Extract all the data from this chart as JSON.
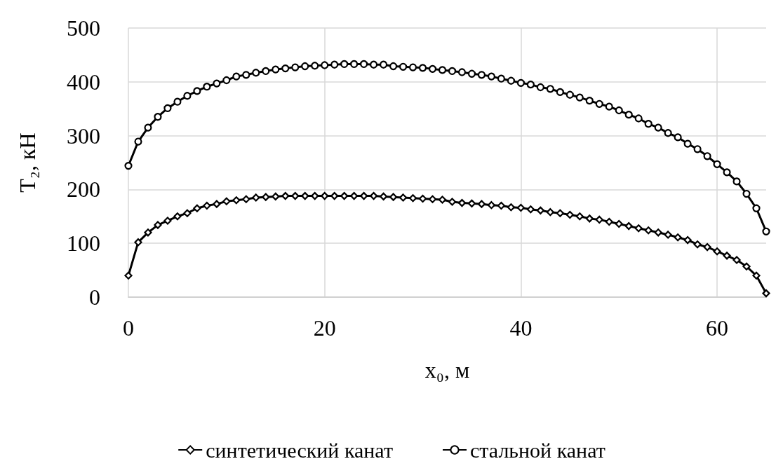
{
  "chart_data": {
    "type": "line",
    "xlabel": "x₀, м",
    "ylabel": "T₂, кН",
    "x": [
      0,
      1,
      2,
      3,
      4,
      5,
      6,
      7,
      8,
      9,
      10,
      11,
      12,
      13,
      14,
      15,
      16,
      17,
      18,
      19,
      20,
      21,
      22,
      23,
      24,
      25,
      26,
      27,
      28,
      29,
      30,
      31,
      32,
      33,
      34,
      35,
      36,
      37,
      38,
      39,
      40,
      41,
      42,
      43,
      44,
      45,
      46,
      47,
      48,
      49,
      50,
      51,
      52,
      53,
      54,
      55,
      56,
      57,
      58,
      59,
      60,
      61,
      62,
      63,
      64,
      65
    ],
    "series": [
      {
        "name": "синтетический канат",
        "color": "#000000",
        "marker": "diamond",
        "values": [
          40,
          102,
          120,
          134,
          142,
          150,
          156,
          165,
          170,
          173,
          178,
          180,
          182,
          185,
          186,
          187,
          188,
          188,
          188,
          188,
          188,
          188,
          188,
          188,
          188,
          188,
          187,
          186,
          185,
          184,
          183,
          182,
          181,
          177,
          175,
          174,
          173,
          171,
          170,
          167,
          166,
          163,
          161,
          158,
          156,
          153,
          150,
          146,
          144,
          140,
          136,
          132,
          128,
          124,
          120,
          116,
          111,
          106,
          98,
          93,
          85,
          77,
          69,
          57,
          40,
          7
        ]
      },
      {
        "name": "стальной канат",
        "color": "#000000",
        "marker": "circle",
        "values": [
          244,
          289,
          315,
          335,
          351,
          363,
          374,
          383,
          391,
          397,
          403,
          410,
          413,
          417,
          420,
          423,
          425,
          427,
          429,
          430,
          431,
          432,
          433,
          433,
          433,
          432,
          432,
          429,
          428,
          427,
          426,
          424,
          422,
          420,
          418,
          415,
          413,
          410,
          406,
          402,
          398,
          395,
          390,
          387,
          381,
          376,
          371,
          365,
          359,
          354,
          347,
          339,
          332,
          322,
          315,
          305,
          297,
          285,
          275,
          262,
          247,
          232,
          215,
          192,
          165,
          122
        ]
      }
    ],
    "xlim": [
      0,
      65
    ],
    "xticks": [
      0,
      20,
      40,
      60
    ],
    "ylim": [
      0,
      500
    ],
    "yticks": [
      0,
      100,
      200,
      300,
      400,
      500
    ],
    "grid": true,
    "legend": "bottom",
    "line_style": "solid"
  }
}
